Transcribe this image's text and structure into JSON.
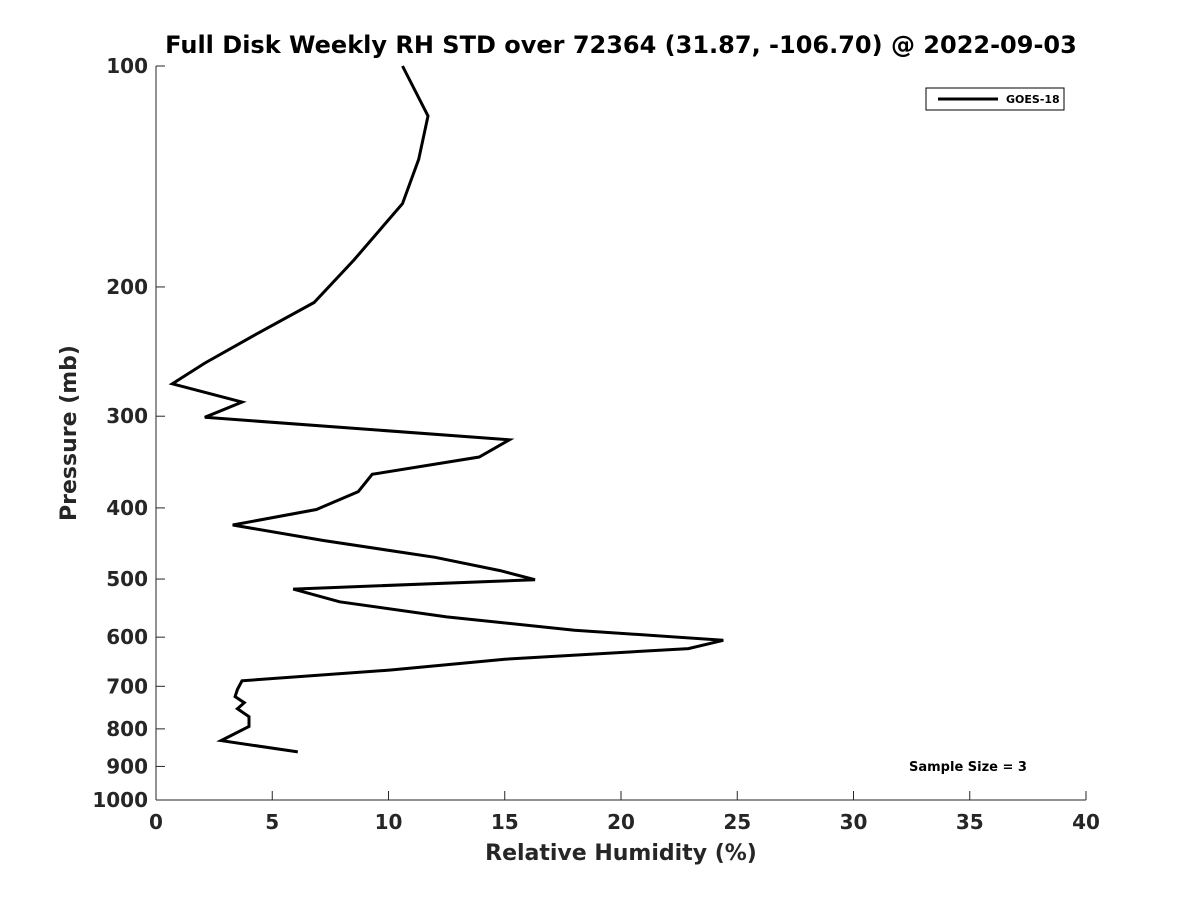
{
  "chart_data": {
    "type": "line",
    "title": "Full Disk Weekly RH STD over 72364 (31.87, -106.70) @ 2022-09-03",
    "xlabel": "Relative Humidity (%)",
    "ylabel": "Pressure (mb)",
    "xlim": [
      0,
      40
    ],
    "ylim": [
      100,
      1000
    ],
    "yscale": "log",
    "y_reversed": true,
    "xticks": [
      0,
      5,
      10,
      15,
      20,
      25,
      30,
      35,
      40
    ],
    "yticks": [
      100,
      200,
      300,
      400,
      500,
      600,
      700,
      800,
      900,
      1000
    ],
    "grid": false,
    "legend": "top-right",
    "annotation": "Sample Size = 3",
    "series": [
      {
        "name": "GOES-18",
        "color": "#000000",
        "points": [
          [
            10.6,
            100
          ],
          [
            11.7,
            117
          ],
          [
            11.3,
            134
          ],
          [
            10.6,
            154
          ],
          [
            8.5,
            184
          ],
          [
            6.8,
            210
          ],
          [
            4.3,
            232
          ],
          [
            2.1,
            254
          ],
          [
            0.7,
            271
          ],
          [
            3.7,
            287
          ],
          [
            2.1,
            301
          ],
          [
            15.2,
            323
          ],
          [
            13.9,
            341
          ],
          [
            9.3,
            360
          ],
          [
            8.7,
            380
          ],
          [
            6.9,
            402
          ],
          [
            3.3,
            422
          ],
          [
            7.2,
            443
          ],
          [
            12.0,
            467
          ],
          [
            14.8,
            487
          ],
          [
            16.3,
            501
          ],
          [
            5.9,
            516
          ],
          [
            7.9,
            537
          ],
          [
            12.5,
            563
          ],
          [
            18.0,
            587
          ],
          [
            24.4,
            606
          ],
          [
            22.9,
            622
          ],
          [
            15.0,
            643
          ],
          [
            10.1,
            665
          ],
          [
            3.7,
            688
          ],
          [
            3.5,
            707
          ],
          [
            3.4,
            723
          ],
          [
            3.8,
            737
          ],
          [
            3.5,
            751
          ],
          [
            4.0,
            770
          ],
          [
            4.0,
            794
          ],
          [
            2.8,
            830
          ],
          [
            6.1,
            860
          ]
        ]
      }
    ]
  }
}
